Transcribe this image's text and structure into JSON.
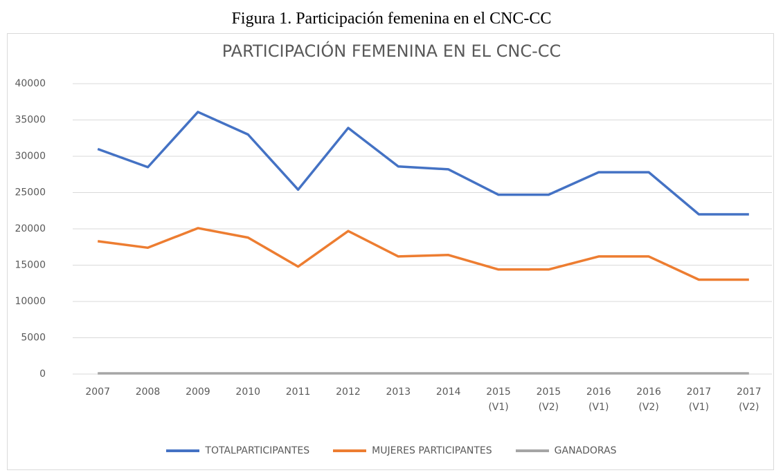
{
  "caption": "Figura 1. Participación femenina en el CNC-CC",
  "chart_data": {
    "type": "line",
    "title": "PARTICIPACIÓN FEMENINA EN EL CNC-CC",
    "categories": [
      "2007",
      "2008",
      "2009",
      "2010",
      "2011",
      "2012",
      "2013",
      "2014",
      "2015 (V1)",
      "2015 (V2)",
      "2016 (V1)",
      "2016 (V2)",
      "2017 (V1)",
      "2017 (V2)"
    ],
    "series": [
      {
        "name": "TOTALPARTICIPANTES",
        "color": "#4472c4",
        "values": [
          31000,
          28500,
          36100,
          33000,
          25400,
          33900,
          28600,
          28200,
          24700,
          24700,
          27800,
          27800,
          22000,
          22000
        ]
      },
      {
        "name": "MUJERES PARTICIPANTES",
        "color": "#ed7d31",
        "values": [
          18300,
          17400,
          20100,
          18800,
          14800,
          19700,
          16200,
          16400,
          14400,
          14400,
          16200,
          16200,
          13000,
          13000
        ]
      },
      {
        "name": "GANADORAS",
        "color": "#a5a5a5",
        "values": [
          100,
          100,
          100,
          100,
          100,
          100,
          100,
          100,
          100,
          100,
          100,
          100,
          100,
          100
        ]
      }
    ],
    "ylim": [
      0,
      40000
    ],
    "yticks": [
      0,
      5000,
      10000,
      15000,
      20000,
      25000,
      30000,
      35000,
      40000
    ],
    "grid": true,
    "legend": "bottom"
  }
}
